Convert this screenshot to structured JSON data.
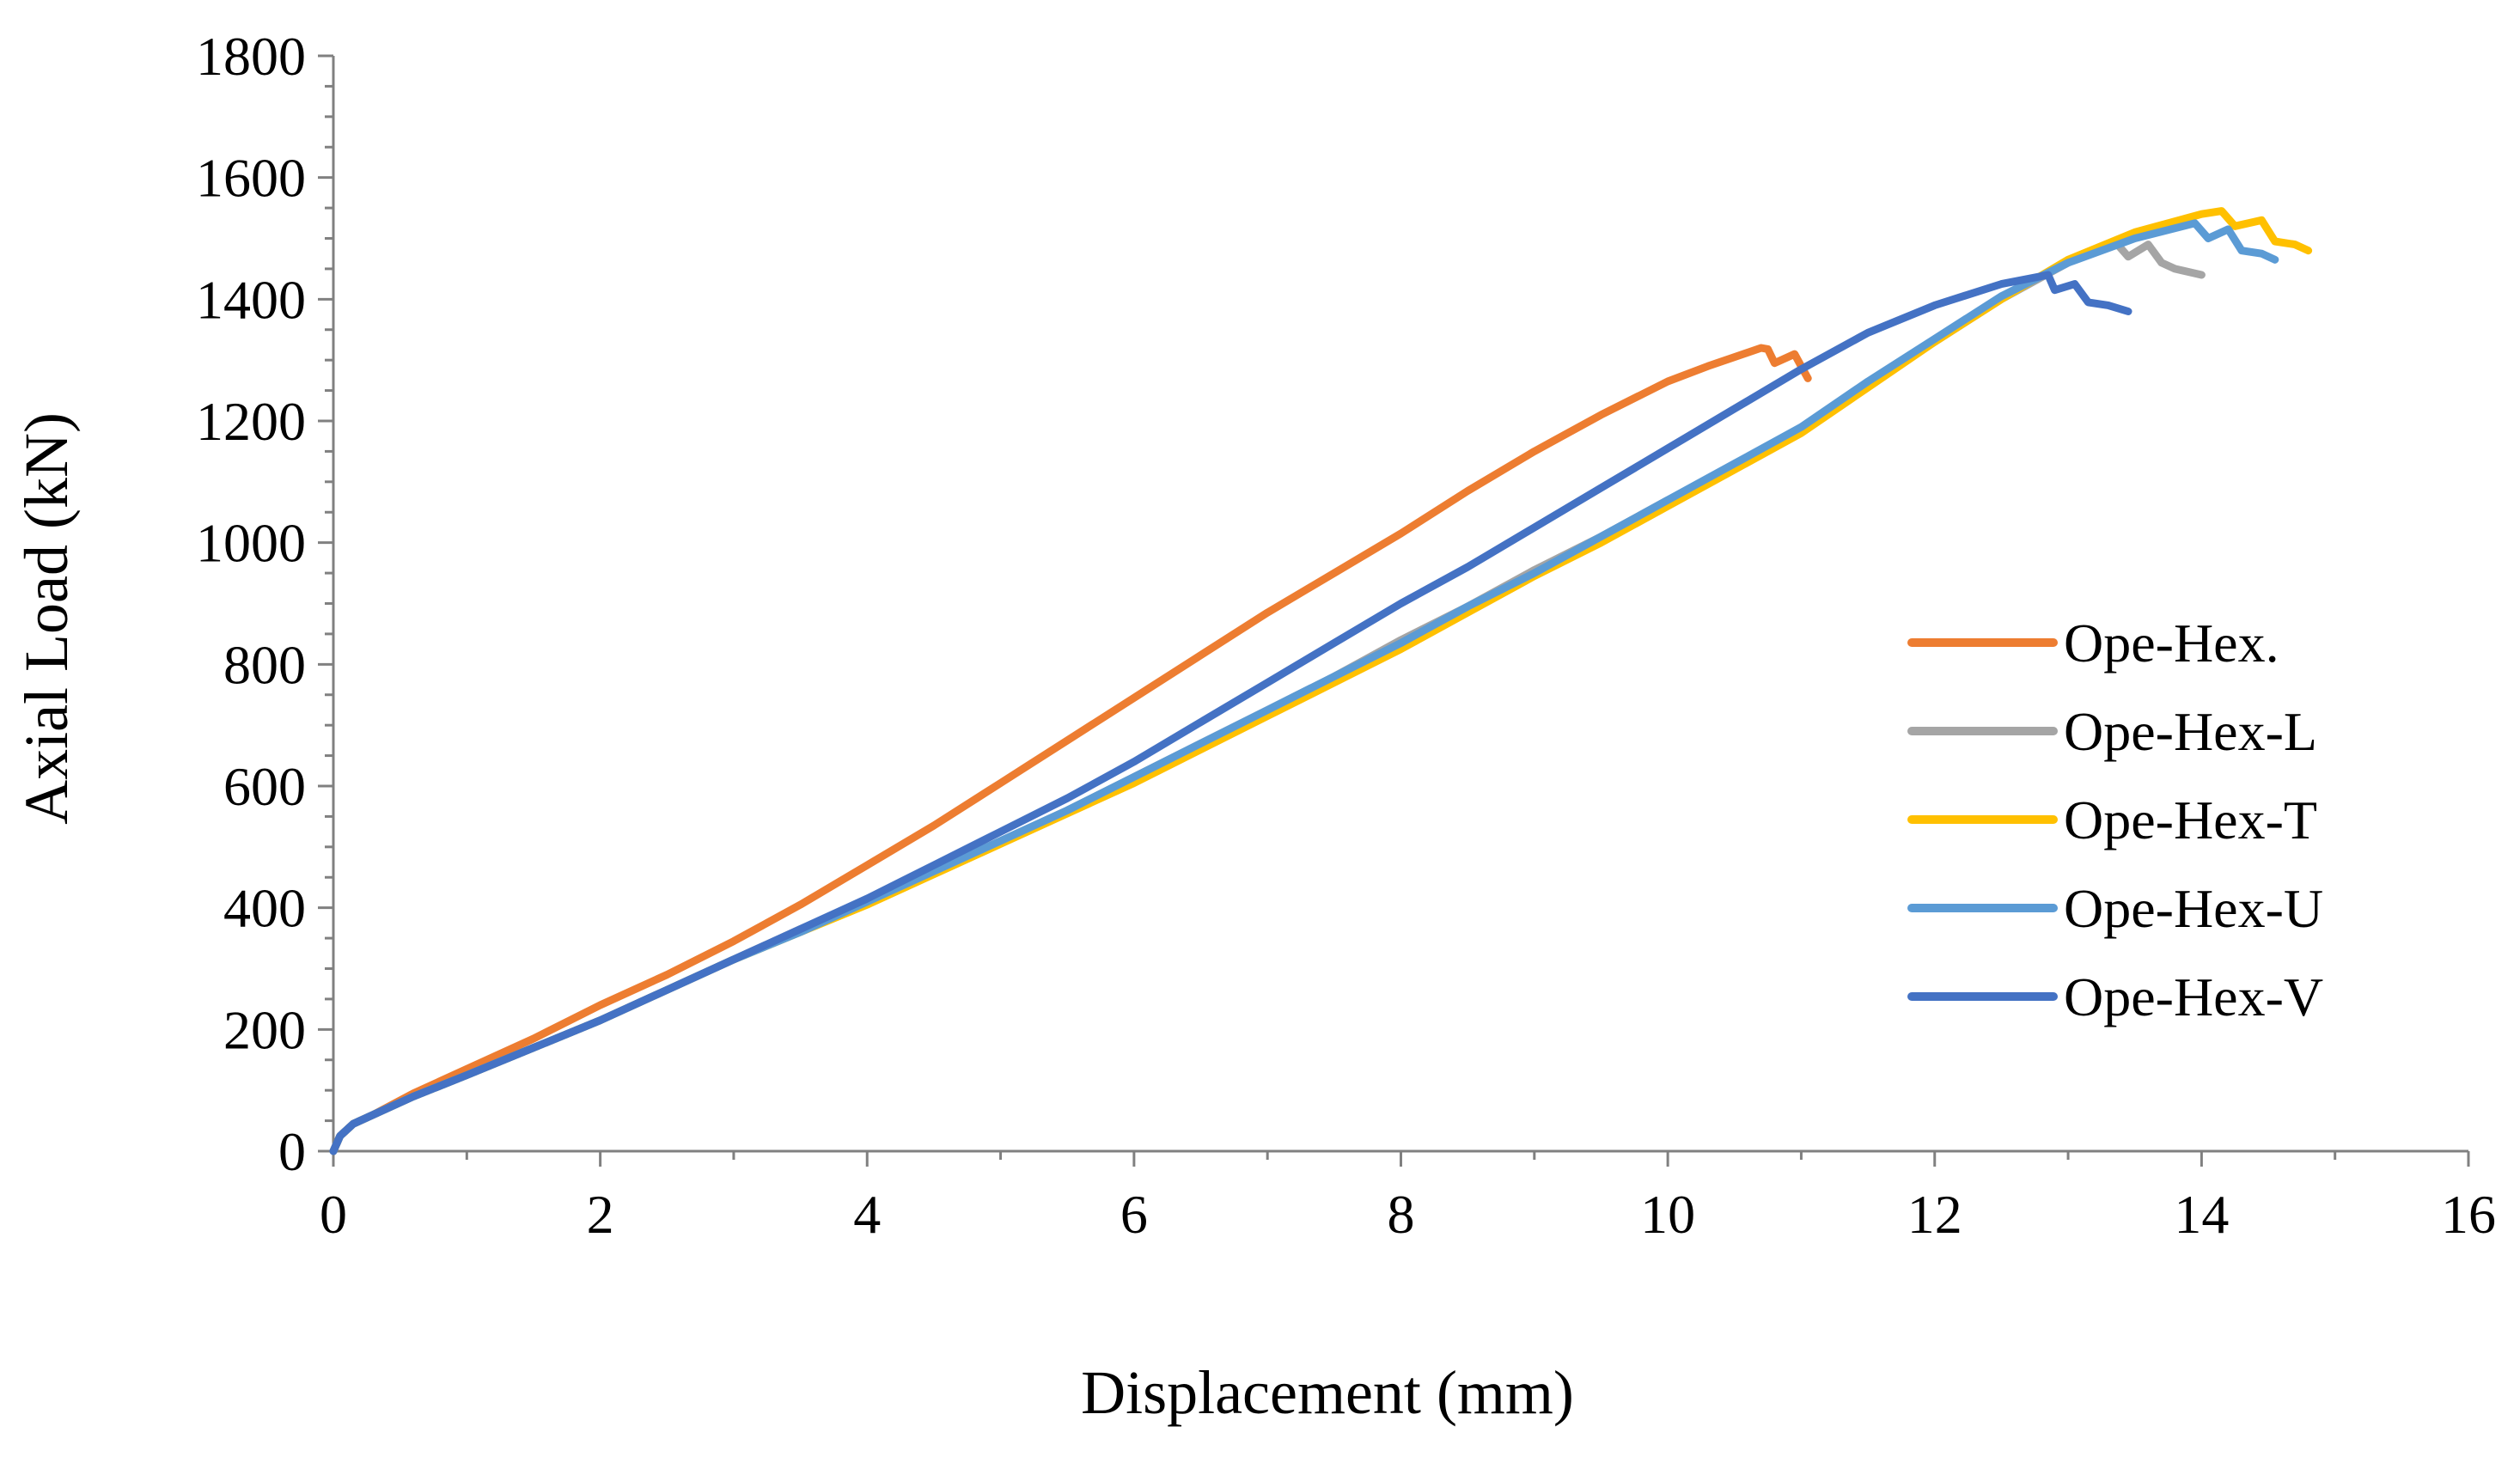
{
  "chart_data": {
    "type": "line",
    "title": "",
    "xlabel": "Displacement (mm)",
    "ylabel": "Axial Load (kN)",
    "xlim": [
      0,
      16
    ],
    "ylim": [
      0,
      1800
    ],
    "xticks": [
      0,
      2,
      4,
      6,
      8,
      10,
      12,
      14,
      16
    ],
    "yticks": [
      0,
      200,
      400,
      600,
      800,
      1000,
      1200,
      1400,
      1600,
      1800
    ],
    "grid": false,
    "legend": "right",
    "series": [
      {
        "name": "Ope-Hex.",
        "color": "#ED7D31",
        "x": [
          0,
          0.05,
          0.15,
          0.3,
          0.6,
          1.0,
          1.5,
          2.0,
          2.5,
          3.0,
          3.5,
          4.0,
          4.5,
          5.0,
          5.5,
          6.0,
          6.5,
          7.0,
          7.5,
          8.0,
          8.5,
          9.0,
          9.5,
          10.0,
          10.3,
          10.5,
          10.7,
          10.75,
          10.8,
          10.95,
          11.0,
          11.05
        ],
        "y": [
          0,
          25,
          45,
          60,
          95,
          135,
          185,
          240,
          290,
          345,
          405,
          470,
          535,
          605,
          675,
          745,
          815,
          885,
          950,
          1015,
          1085,
          1150,
          1210,
          1265,
          1290,
          1305,
          1320,
          1318,
          1295,
          1310,
          1290,
          1270
        ]
      },
      {
        "name": "Ope-Hex-L",
        "color": "#A5A5A5",
        "x": [
          0,
          0.05,
          0.15,
          0.3,
          0.6,
          1.0,
          1.5,
          2.0,
          2.5,
          3.0,
          3.5,
          4.0,
          4.5,
          5.0,
          5.5,
          6.0,
          6.5,
          7.0,
          7.5,
          8.0,
          8.5,
          9.0,
          9.5,
          10.0,
          10.5,
          11.0,
          11.5,
          12.0,
          12.5,
          13.0,
          13.35,
          13.45,
          13.6,
          13.7,
          13.8,
          14.0
        ],
        "y": [
          0,
          25,
          45,
          60,
          90,
          125,
          170,
          215,
          265,
          315,
          365,
          410,
          460,
          510,
          560,
          615,
          670,
          725,
          780,
          840,
          895,
          955,
          1010,
          1070,
          1125,
          1185,
          1260,
          1330,
          1400,
          1460,
          1495,
          1470,
          1490,
          1460,
          1450,
          1440
        ]
      },
      {
        "name": "Ope-Hex-T",
        "color": "#FFC000",
        "x": [
          0,
          0.05,
          0.15,
          0.3,
          0.6,
          1.0,
          1.5,
          2.0,
          2.5,
          3.0,
          3.5,
          4.0,
          4.5,
          5.0,
          5.5,
          6.0,
          6.5,
          7.0,
          7.5,
          8.0,
          8.5,
          9.0,
          9.5,
          10.0,
          10.5,
          11.0,
          11.5,
          12.0,
          12.5,
          13.0,
          13.5,
          14.0,
          14.15,
          14.25,
          14.45,
          14.55,
          14.7,
          14.8
        ],
        "y": [
          0,
          25,
          45,
          60,
          90,
          125,
          170,
          215,
          265,
          315,
          360,
          405,
          455,
          505,
          555,
          605,
          660,
          715,
          770,
          825,
          885,
          945,
          1000,
          1060,
          1120,
          1180,
          1255,
          1330,
          1400,
          1465,
          1510,
          1540,
          1545,
          1520,
          1530,
          1495,
          1490,
          1480
        ]
      },
      {
        "name": "Ope-Hex-U",
        "color": "#5B9BD5",
        "x": [
          0,
          0.05,
          0.15,
          0.3,
          0.6,
          1.0,
          1.5,
          2.0,
          2.5,
          3.0,
          3.5,
          4.0,
          4.5,
          5.0,
          5.5,
          6.0,
          6.5,
          7.0,
          7.5,
          8.0,
          8.5,
          9.0,
          9.5,
          10.0,
          10.5,
          11.0,
          11.5,
          12.0,
          12.5,
          13.0,
          13.5,
          13.95,
          14.05,
          14.2,
          14.3,
          14.45,
          14.55
        ],
        "y": [
          0,
          25,
          45,
          60,
          90,
          125,
          170,
          215,
          265,
          315,
          360,
          410,
          460,
          510,
          560,
          615,
          670,
          725,
          780,
          835,
          895,
          950,
          1010,
          1070,
          1130,
          1190,
          1265,
          1335,
          1405,
          1460,
          1500,
          1525,
          1500,
          1515,
          1480,
          1475,
          1465
        ]
      },
      {
        "name": "Ope-Hex-V",
        "color": "#4472C4",
        "x": [
          0,
          0.05,
          0.15,
          0.3,
          0.6,
          1.0,
          1.5,
          2.0,
          2.5,
          3.0,
          3.5,
          4.0,
          4.5,
          5.0,
          5.5,
          6.0,
          6.5,
          7.0,
          7.5,
          8.0,
          8.5,
          9.0,
          9.5,
          10.0,
          10.5,
          11.0,
          11.5,
          12.0,
          12.5,
          12.85,
          12.9,
          13.05,
          13.15,
          13.3,
          13.45
        ],
        "y": [
          0,
          25,
          45,
          60,
          90,
          125,
          170,
          215,
          265,
          315,
          365,
          415,
          470,
          525,
          580,
          640,
          705,
          770,
          835,
          900,
          960,
          1025,
          1090,
          1155,
          1220,
          1285,
          1345,
          1390,
          1425,
          1440,
          1415,
          1425,
          1395,
          1390,
          1380
        ]
      }
    ]
  }
}
